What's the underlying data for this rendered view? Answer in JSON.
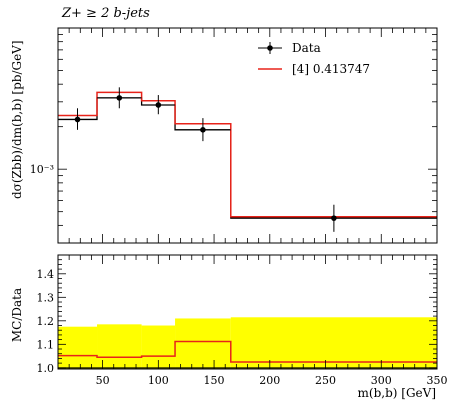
{
  "title": "Z+ ≥ 2 b-jets",
  "ylabel_main": "dσ(Zbb)/dm(b,b) [pb/GeV]",
  "ylabel_ratio": "MC/Data",
  "xlabel": "m(b,b) [GeV]",
  "chart_data": [
    {
      "type": "line",
      "panel": "main",
      "yscale": "log",
      "xlim": [
        10,
        350
      ],
      "ylim": [
        0.0003,
        0.01
      ],
      "ytick_labels": [
        "10⁻³"
      ],
      "ytick_values": [
        0.001
      ],
      "legend_placement": "top-right",
      "series": [
        {
          "name": "Data",
          "style": "points-with-errorbars",
          "color": "#000000",
          "x": [
            27.5,
            65,
            100,
            140,
            257.5
          ],
          "xerr": [
            17.5,
            20,
            15,
            25,
            92.5
          ],
          "y": [
            0.00225,
            0.0032,
            0.00285,
            0.0019,
            0.00045
          ],
          "yerr_up": [
            0.00045,
            0.0006,
            0.0005,
            0.0004,
            0.00011
          ],
          "yerr_down": [
            0.00035,
            0.0005,
            0.0004,
            0.00032,
            9e-05
          ]
        },
        {
          "name": "[4] 0.413747",
          "style": "histogram-step",
          "color": "#e8231a",
          "bin_edges": [
            10,
            45,
            85,
            115,
            165,
            350
          ],
          "values": [
            0.0024,
            0.0035,
            0.00305,
            0.0021,
            0.00046
          ]
        }
      ]
    },
    {
      "type": "line",
      "panel": "ratio",
      "xlim": [
        10,
        350
      ],
      "ylim": [
        0.995,
        1.48
      ],
      "ytick_labels": [
        "1.0",
        "1.1",
        "1.2",
        "1.3",
        "1.4"
      ],
      "ytick_values": [
        1.0,
        1.1,
        1.2,
        1.3,
        1.4
      ],
      "xtick_labels": [
        "50",
        "100",
        "150",
        "200",
        "250",
        "300",
        "350"
      ],
      "xtick_values": [
        50,
        100,
        150,
        200,
        250,
        300,
        350
      ],
      "series": [
        {
          "name": "Data uncertainty",
          "style": "band",
          "color": "#ffff00",
          "bin_edges": [
            10,
            45,
            85,
            115,
            165,
            350
          ],
          "upper": [
            1.175,
            1.185,
            1.18,
            1.21,
            1.215
          ]
        },
        {
          "name": "[4] 0.413747",
          "style": "histogram-step",
          "color": "#e8231a",
          "bin_edges": [
            10,
            45,
            85,
            115,
            165,
            350
          ],
          "values": [
            1.052,
            1.045,
            1.05,
            1.112,
            1.025
          ]
        },
        {
          "name": "Data",
          "style": "reference-line",
          "color": "#000000",
          "value": 1.0
        }
      ]
    }
  ]
}
